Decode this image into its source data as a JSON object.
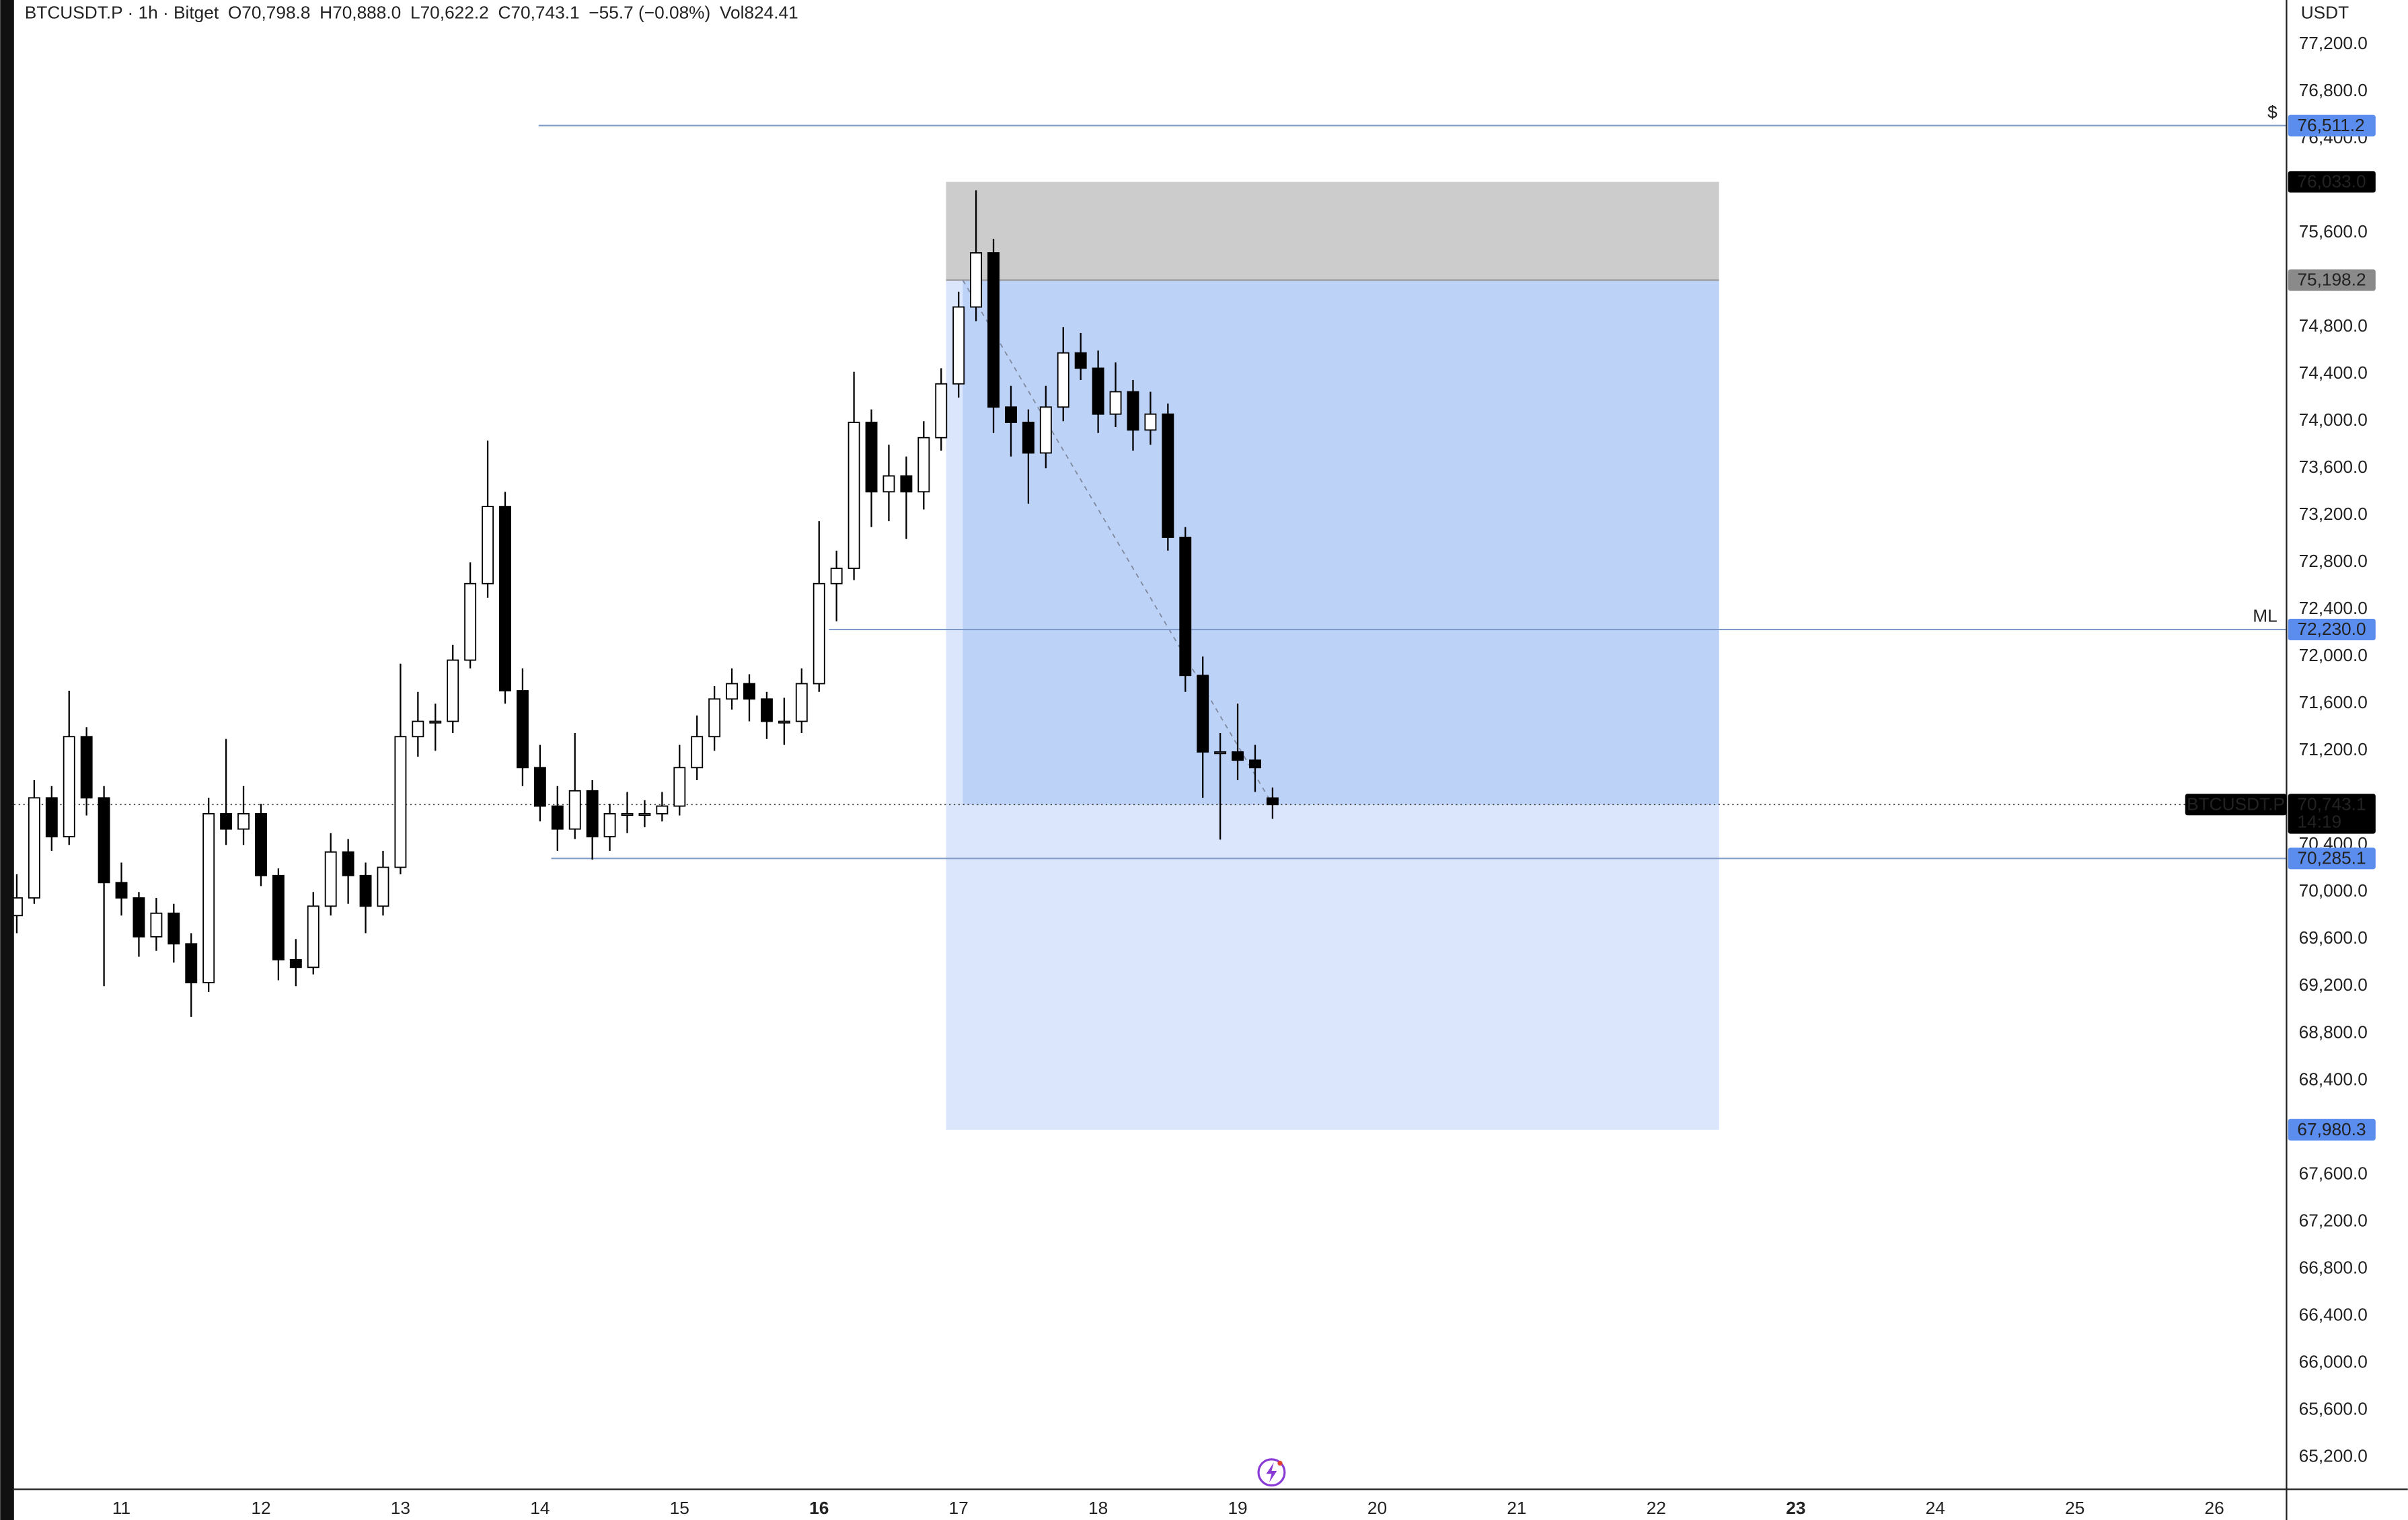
{
  "chart_data": {
    "type": "candlestick",
    "header": [
      "BTCUSDT.P · 1h · Bitget",
      "O70,798.8",
      "H70,888.0",
      "L70,622.2",
      "C70,743.1",
      "−55.7 (−0.08%)",
      "Vol824.41"
    ],
    "y_unit": "USDT",
    "xlim": [
      10.131,
      26.517
    ],
    "ylim": [
      64926,
      77578
    ],
    "xticks": [
      11,
      12,
      13,
      14,
      15,
      16,
      17,
      18,
      19,
      20,
      21,
      22,
      23,
      24,
      25,
      26
    ],
    "xticks_bold": [
      16,
      23
    ],
    "yticks": [
      {
        "value": 65200,
        "label": "65,200.0"
      },
      {
        "value": 65600,
        "label": "65,600.0"
      },
      {
        "value": 66000,
        "label": "66,000.0"
      },
      {
        "value": 66400,
        "label": "66,400.0"
      },
      {
        "value": 66800,
        "label": "66,800.0"
      },
      {
        "value": 67200,
        "label": "67,200.0"
      },
      {
        "value": 67600,
        "label": "67,600.0"
      },
      {
        "value": 68400,
        "label": "68,400.0"
      },
      {
        "value": 68800,
        "label": "68,800.0"
      },
      {
        "value": 69200,
        "label": "69,200.0"
      },
      {
        "value": 69600,
        "label": "69,600.0"
      },
      {
        "value": 70000,
        "label": "70,000.0"
      },
      {
        "value": 70400,
        "label": "70,400.0"
      },
      {
        "value": 71200,
        "label": "71,200.0"
      },
      {
        "value": 71600,
        "label": "71,600.0"
      },
      {
        "value": 72000,
        "label": "72,000.0"
      },
      {
        "value": 72400,
        "label": "72,400.0"
      },
      {
        "value": 72800,
        "label": "72,800.0"
      },
      {
        "value": 73200,
        "label": "73,200.0"
      },
      {
        "value": 73600,
        "label": "73,600.0"
      },
      {
        "value": 74000,
        "label": "74,000.0"
      },
      {
        "value": 74400,
        "label": "74,400.0"
      },
      {
        "value": 74800,
        "label": "74,800.0"
      },
      {
        "value": 75600,
        "label": "75,600.0"
      },
      {
        "value": 76400,
        "label": "76,400.0"
      },
      {
        "value": 76800,
        "label": "76,800.0"
      },
      {
        "value": 77200,
        "label": "77,200.0"
      }
    ],
    "grid": false,
    "up_color": "#ffffff",
    "down_color": "#000000",
    "x": [
      10.25,
      10.375,
      10.5,
      10.625,
      10.75,
      10.875,
      11,
      11.125,
      11.25,
      11.375,
      11.5,
      11.625,
      11.75,
      11.875,
      12,
      12.125,
      12.25,
      12.375,
      12.5,
      12.625,
      12.75,
      12.875,
      13,
      13.125,
      13.25,
      13.375,
      13.5,
      13.625,
      13.75,
      13.875,
      14,
      14.125,
      14.25,
      14.375,
      14.5,
      14.625,
      14.75,
      14.875,
      15,
      15.125,
      15.25,
      15.375,
      15.5,
      15.625,
      15.75,
      15.875,
      16,
      16.125,
      16.25,
      16.375,
      16.5,
      16.625,
      16.75,
      16.875,
      17,
      17.125,
      17.25,
      17.375,
      17.5,
      17.625,
      17.75,
      17.875,
      18,
      18.125,
      18.25,
      18.375,
      18.5,
      18.625,
      18.75,
      18.875,
      19,
      19.125,
      19.25
    ],
    "open": [
      69800,
      69950,
      70800,
      70470,
      71320,
      70800,
      70080,
      69950,
      69620,
      69820,
      69560,
      69230,
      70665,
      70535,
      70665,
      70140,
      69425,
      69360,
      69880,
      70340,
      70140,
      69880,
      70210,
      71320,
      71450,
      71450,
      71970,
      72620,
      73275,
      71710,
      71057,
      70730,
      70535,
      70860,
      70470,
      70665,
      70665,
      70665,
      70730,
      71057,
      71320,
      71640,
      71770,
      71640,
      71450,
      71450,
      71770,
      72620,
      72750,
      73990,
      73400,
      73535,
      73400,
      73860,
      74317,
      74970,
      75430,
      74120,
      73990,
      73730,
      74120,
      74580,
      74450,
      74060,
      74250,
      73925,
      74060,
      73013,
      71840,
      71190,
      71190,
      71120,
      70798.8
    ],
    "high": [
      70150,
      70950,
      70900,
      71710,
      71400,
      70900,
      70250,
      70000,
      69950,
      69900,
      69650,
      70800,
      71300,
      70900,
      70750,
      70200,
      69600,
      70000,
      70500,
      70450,
      70250,
      70350,
      71940,
      71700,
      71600,
      72100,
      72800,
      73835,
      73400,
      71900,
      71250,
      70900,
      71350,
      70950,
      70750,
      70850,
      70780,
      70850,
      71250,
      71500,
      71750,
      71900,
      71850,
      71700,
      71650,
      71900,
      73150,
      72900,
      74420,
      74100,
      73800,
      73700,
      74000,
      74450,
      75100,
      75960,
      75550,
      74300,
      74100,
      74300,
      74800,
      74750,
      74600,
      74500,
      74350,
      74250,
      74150,
      73100,
      72000,
      71350,
      71600,
      71250,
      70888.0
    ],
    "low": [
      69650,
      69900,
      70350,
      70400,
      70650,
      69200,
      69800,
      69450,
      69500,
      69400,
      68940,
      69150,
      70400,
      70400,
      70050,
      69250,
      69200,
      69300,
      69800,
      69900,
      69650,
      69800,
      70150,
      71150,
      71200,
      71350,
      71900,
      72500,
      71600,
      70900,
      70600,
      70350,
      70450,
      70275,
      70350,
      70500,
      70550,
      70600,
      70650,
      70950,
      71200,
      71550,
      71450,
      71300,
      71250,
      71350,
      71700,
      72300,
      72650,
      73100,
      73150,
      73000,
      73250,
      73750,
      74200,
      74850,
      73900,
      73700,
      73300,
      73600,
      74000,
      74350,
      73900,
      73950,
      73750,
      73800,
      72900,
      71700,
      70800,
      70445,
      70950,
      70850,
      70622.2
    ],
    "close": [
      69950,
      70800,
      70470,
      71320,
      70800,
      70080,
      69950,
      69620,
      69820,
      69560,
      69230,
      70665,
      70535,
      70665,
      70140,
      69425,
      69360,
      69880,
      70340,
      70140,
      69880,
      70210,
      71320,
      71450,
      71450,
      71970,
      72620,
      73275,
      71710,
      71057,
      70730,
      70535,
      70860,
      70470,
      70665,
      70665,
      70665,
      70730,
      71057,
      71320,
      71640,
      71770,
      71640,
      71450,
      71450,
      71770,
      72620,
      72750,
      73990,
      73400,
      73535,
      73400,
      73860,
      74317,
      74970,
      75430,
      74120,
      73990,
      73730,
      74120,
      74580,
      74450,
      74060,
      74250,
      73925,
      74060,
      73013,
      71840,
      71190,
      71190,
      71120,
      71057,
      70743.1
    ],
    "position": {
      "start": 16.91,
      "end": 22.45,
      "fill_start": 17.03,
      "stop": {
        "value": 76033.0,
        "label": "76,033.0"
      },
      "entry": {
        "value": 75198.2,
        "label": "75,198.2"
      },
      "target": {
        "value": 67980.3,
        "label": "67,980.3"
      }
    },
    "levels": [
      {
        "value": 76511.2,
        "label": "76,511.2",
        "start": 13.99,
        "tag": "$"
      },
      {
        "value": 72230.0,
        "label": "72,230.0",
        "start": 16.07,
        "tag": "ML"
      },
      {
        "value": 70285.1,
        "label": "70,285.1",
        "start": 14.08
      }
    ],
    "level_color": "#5b8def",
    "current": {
      "value": 70743.1,
      "label": "70,743.1",
      "symbol": "BTCUSDT.P",
      "countdown": "14:19"
    }
  }
}
